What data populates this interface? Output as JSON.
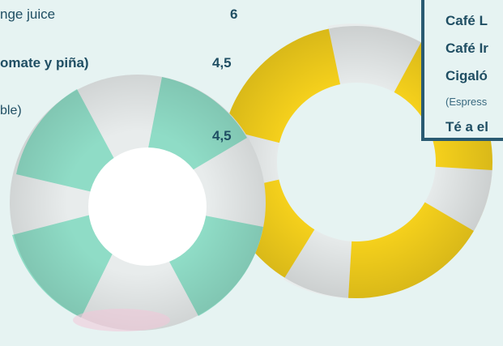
{
  "menu_left": {
    "item_1": "nge juice",
    "item_1_price": "6",
    "item_2": "omate y piña)",
    "item_2_price": "4,5",
    "item_3": "ble)",
    "item_3_price": "4,5"
  },
  "menu_box": {
    "line_1": "Café L",
    "line_2": "Café Ir",
    "line_3": "Cigaló",
    "note": "(Espress",
    "line_4": "Té a el"
  },
  "colors": {
    "text": "#1f4e63",
    "frame": "#2a5a72",
    "mint": "#8fdcc6",
    "yellow": "#f7d21c",
    "white_stripe": "#e8ecec"
  }
}
